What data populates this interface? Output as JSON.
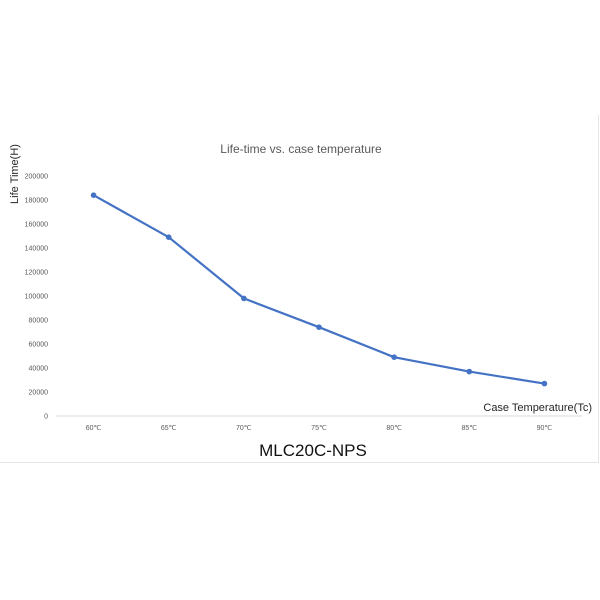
{
  "colors": {
    "series": "#4472c4",
    "axis": "#d9d9d9",
    "text": "#595959"
  },
  "chart_data": {
    "type": "line",
    "title": "Life-time vs. case temperature",
    "xlabel": "Case Temperature(Tc)",
    "ylabel": "Life Time(H)",
    "categories": [
      "60℃",
      "65℃",
      "70℃",
      "75℃",
      "80℃",
      "85℃",
      "90℃"
    ],
    "series": [
      {
        "values": [
          184000,
          149000,
          98000,
          74000,
          49000,
          37000,
          27000
        ]
      }
    ],
    "ylim": [
      0,
      200000
    ],
    "yticks": [
      "0",
      "20000",
      "40000",
      "60000",
      "80000",
      "100000",
      "120000",
      "140000",
      "160000",
      "180000",
      "200000"
    ],
    "grid": false,
    "legend": "none"
  },
  "caption": "MLC20C-NPS"
}
